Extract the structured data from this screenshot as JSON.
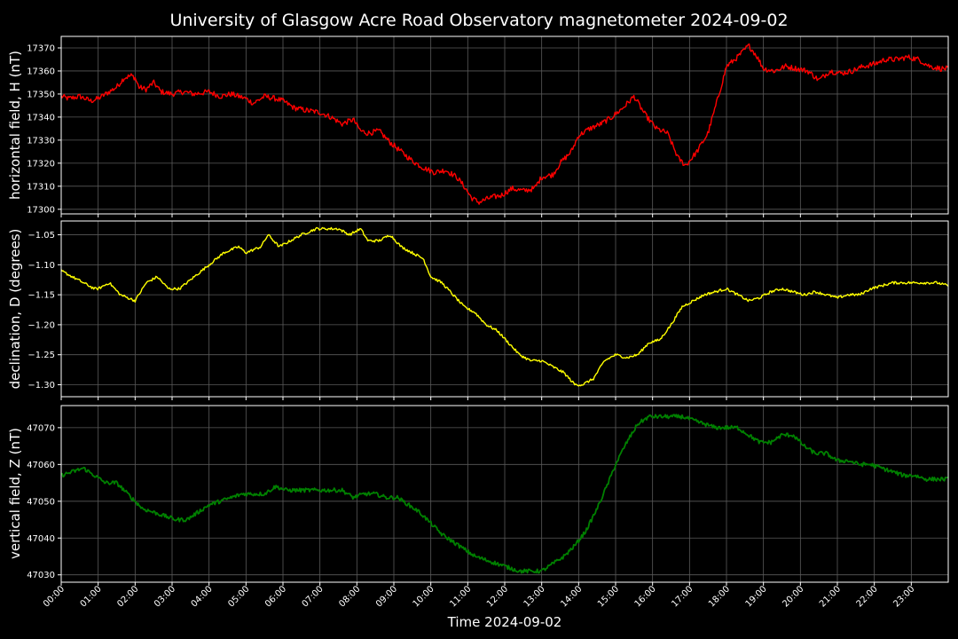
{
  "figure": {
    "title": "University of Glasgow Acre Road Observatory magnetometer 2024-09-02",
    "xlabel": "Time 2024-09-02"
  },
  "colors": {
    "background": "#000000",
    "H": "#ff0000",
    "D": "#ffff00",
    "Z": "#008000",
    "grid": "#5a5a5a",
    "text": "#ffffff"
  },
  "chart_data": [
    {
      "type": "line",
      "ylabel": "horizontal field, H (nT)",
      "series": [
        {
          "color": "#ff0000"
        }
      ],
      "xlim": [
        0,
        24
      ],
      "ylim": [
        17298,
        17375
      ],
      "yticks": [
        17300,
        17310,
        17320,
        17330,
        17340,
        17350,
        17360,
        17370
      ],
      "ytick_labels": [
        "17300",
        "17310",
        "17320",
        "17330",
        "17340",
        "17350",
        "17360",
        "17370"
      ],
      "xticks_hours": [
        0,
        1,
        2,
        3,
        4,
        5,
        6,
        7,
        8,
        9,
        10,
        11,
        12,
        13,
        14,
        15,
        16,
        17,
        18,
        19,
        20,
        21,
        22,
        23
      ],
      "grid": true,
      "noise": 1.2,
      "x": [
        0,
        0.2,
        0.5,
        0.8,
        1.0,
        1.2,
        1.5,
        1.7,
        1.9,
        2.0,
        2.1,
        2.3,
        2.5,
        2.7,
        3.0,
        3.3,
        3.6,
        4.0,
        4.3,
        4.6,
        5.0,
        5.2,
        5.5,
        5.8,
        6.0,
        6.3,
        6.6,
        7.0,
        7.3,
        7.6,
        7.9,
        8.1,
        8.3,
        8.6,
        8.9,
        9.2,
        9.5,
        9.8,
        10.1,
        10.4,
        10.7,
        10.9,
        11.1,
        11.3,
        11.6,
        11.9,
        12.2,
        12.5,
        12.8,
        13.0,
        13.3,
        13.5,
        13.8,
        14.0,
        14.3,
        14.6,
        14.9,
        15.2,
        15.5,
        15.8,
        16.1,
        16.4,
        16.7,
        16.9,
        17.2,
        17.5,
        17.8,
        18.0,
        18.3,
        18.6,
        18.8,
        19.0,
        19.3,
        19.6,
        19.9,
        20.2,
        20.5,
        20.8,
        21.1,
        21.4,
        21.7,
        22.0,
        22.3,
        22.6,
        22.9,
        23.2,
        23.5,
        23.8,
        24.0
      ],
      "y": [
        17349,
        17348,
        17349,
        17347,
        17348,
        17350,
        17353,
        17357,
        17358,
        17357,
        17353,
        17352,
        17355,
        17351,
        17350,
        17351,
        17350,
        17351,
        17349,
        17350,
        17348,
        17346,
        17349,
        17348,
        17347,
        17344,
        17343,
        17342,
        17340,
        17337,
        17339,
        17334,
        17333,
        17334,
        17329,
        17325,
        17321,
        17318,
        17316,
        17317,
        17314,
        17310,
        17305,
        17303,
        17305,
        17306,
        17309,
        17308,
        17309,
        17314,
        17315,
        17320,
        17325,
        17332,
        17335,
        17337,
        17340,
        17344,
        17349,
        17341,
        17335,
        17333,
        17322,
        17319,
        17325,
        17333,
        17350,
        17362,
        17366,
        17371,
        17367,
        17361,
        17360,
        17362,
        17361,
        17360,
        17356,
        17360,
        17359,
        17360,
        17362,
        17363,
        17365,
        17365,
        17366,
        17365,
        17362,
        17361,
        17361
      ]
    },
    {
      "type": "line",
      "ylabel": "declination, D (degrees)",
      "series": [
        {
          "color": "#ffff00"
        }
      ],
      "xlim": [
        0,
        24
      ],
      "ylim": [
        -1.32,
        -1.027
      ],
      "yticks": [
        -1.3,
        -1.25,
        -1.2,
        -1.15,
        -1.1,
        -1.05
      ],
      "ytick_labels": [
        "−1.30",
        "−1.25",
        "−1.20",
        "−1.15",
        "−1.10",
        "−1.05"
      ],
      "xticks_hours": [
        0,
        1,
        2,
        3,
        4,
        5,
        6,
        7,
        8,
        9,
        10,
        11,
        12,
        13,
        14,
        15,
        16,
        17,
        18,
        19,
        20,
        21,
        22,
        23
      ],
      "grid": true,
      "noise": 0.0022,
      "x": [
        0,
        0.3,
        0.6,
        0.9,
        1.0,
        1.3,
        1.6,
        2.0,
        2.3,
        2.6,
        2.9,
        3.2,
        3.6,
        4.0,
        4.4,
        4.8,
        5.0,
        5.4,
        5.6,
        5.9,
        6.2,
        6.5,
        6.9,
        7.2,
        7.5,
        7.8,
        8.1,
        8.3,
        8.6,
        8.9,
        9.2,
        9.5,
        9.8,
        10.0,
        10.3,
        10.6,
        10.9,
        11.2,
        11.5,
        11.8,
        12.1,
        12.4,
        12.7,
        13.0,
        13.3,
        13.6,
        13.9,
        14.1,
        14.4,
        14.7,
        15.0,
        15.3,
        15.6,
        15.9,
        16.2,
        16.5,
        16.8,
        17.1,
        17.4,
        17.7,
        18.0,
        18.3,
        18.6,
        18.9,
        19.2,
        19.5,
        19.8,
        20.1,
        20.4,
        20.7,
        21.0,
        21.3,
        21.6,
        21.9,
        22.2,
        22.5,
        22.8,
        23.1,
        23.4,
        23.7,
        24.0
      ],
      "y": [
        -1.11,
        -1.12,
        -1.13,
        -1.14,
        -1.14,
        -1.13,
        -1.15,
        -1.16,
        -1.13,
        -1.12,
        -1.14,
        -1.14,
        -1.12,
        -1.1,
        -1.08,
        -1.07,
        -1.08,
        -1.07,
        -1.05,
        -1.07,
        -1.06,
        -1.05,
        -1.04,
        -1.04,
        -1.04,
        -1.05,
        -1.04,
        -1.06,
        -1.06,
        -1.05,
        -1.07,
        -1.08,
        -1.09,
        -1.12,
        -1.13,
        -1.15,
        -1.17,
        -1.18,
        -1.2,
        -1.21,
        -1.23,
        -1.25,
        -1.26,
        -1.26,
        -1.27,
        -1.28,
        -1.3,
        -1.3,
        -1.29,
        -1.26,
        -1.25,
        -1.255,
        -1.25,
        -1.23,
        -1.225,
        -1.2,
        -1.17,
        -1.16,
        -1.15,
        -1.145,
        -1.14,
        -1.15,
        -1.16,
        -1.155,
        -1.145,
        -1.14,
        -1.145,
        -1.15,
        -1.145,
        -1.15,
        -1.155,
        -1.15,
        -1.15,
        -1.14,
        -1.135,
        -1.13,
        -1.13,
        -1.13,
        -1.13,
        -1.13,
        -1.135
      ]
    },
    {
      "type": "line",
      "ylabel": "vertical field, Z (nT)",
      "series": [
        {
          "color": "#008000"
        }
      ],
      "xlim": [
        0,
        24
      ],
      "ylim": [
        47028,
        47076
      ],
      "yticks": [
        47030,
        47040,
        47050,
        47060,
        47070
      ],
      "ytick_labels": [
        "47030",
        "47040",
        "47050",
        "47060",
        "47070"
      ],
      "xticks_hours": [
        0,
        1,
        2,
        3,
        4,
        5,
        6,
        7,
        8,
        9,
        10,
        11,
        12,
        13,
        14,
        15,
        16,
        17,
        18,
        19,
        20,
        21,
        22,
        23
      ],
      "xtick_labels": [
        "00:00",
        "01:00",
        "02:00",
        "03:00",
        "04:00",
        "05:00",
        "06:00",
        "07:00",
        "08:00",
        "09:00",
        "10:00",
        "11:00",
        "12:00",
        "13:00",
        "14:00",
        "15:00",
        "16:00",
        "17:00",
        "18:00",
        "19:00",
        "20:00",
        "21:00",
        "22:00",
        "23:00"
      ],
      "grid": true,
      "noise": 0.55,
      "x": [
        0,
        0.3,
        0.6,
        0.9,
        1.2,
        1.5,
        1.8,
        2.0,
        2.2,
        2.5,
        2.8,
        3.1,
        3.4,
        3.7,
        4.0,
        4.3,
        4.6,
        4.9,
        5.2,
        5.5,
        5.8,
        6.1,
        6.4,
        6.7,
        7.0,
        7.3,
        7.6,
        7.9,
        8.2,
        8.5,
        8.8,
        9.1,
        9.4,
        9.7,
        10.0,
        10.3,
        10.6,
        10.9,
        11.2,
        11.5,
        11.8,
        12.1,
        12.4,
        12.7,
        13.0,
        13.3,
        13.6,
        13.9,
        14.2,
        14.5,
        14.8,
        15.0,
        15.3,
        15.6,
        15.9,
        16.2,
        16.5,
        16.8,
        17.1,
        17.4,
        17.7,
        18.0,
        18.3,
        18.6,
        18.9,
        19.2,
        19.5,
        19.8,
        20.1,
        20.4,
        20.7,
        21.0,
        21.3,
        21.6,
        21.9,
        22.2,
        22.5,
        22.8,
        23.1,
        23.4,
        23.7,
        24.0
      ],
      "y": [
        47057,
        47058,
        47059,
        47057,
        47055,
        47055,
        47052,
        47050,
        47048,
        47047,
        47046,
        47045,
        47045,
        47047,
        47049,
        47050,
        47051,
        47052,
        47052,
        47052,
        47054,
        47053,
        47053,
        47053,
        47053,
        47053,
        47053,
        47051,
        47052,
        47052,
        47051,
        47051,
        47049,
        47047,
        47044,
        47041,
        47039,
        47037,
        47035,
        47034,
        47033,
        47032,
        47031,
        47031,
        47031,
        47033,
        47035,
        47038,
        47042,
        47048,
        47055,
        47060,
        47066,
        47071,
        47073,
        47073,
        47073,
        47073,
        47072,
        47071,
        47070,
        47070,
        47070,
        47068,
        47066,
        47066,
        47068,
        47068,
        47065,
        47063,
        47063,
        47061,
        47061,
        47060,
        47060,
        47059,
        47058,
        47057,
        47057,
        47056,
        47056,
        47056
      ]
    }
  ]
}
